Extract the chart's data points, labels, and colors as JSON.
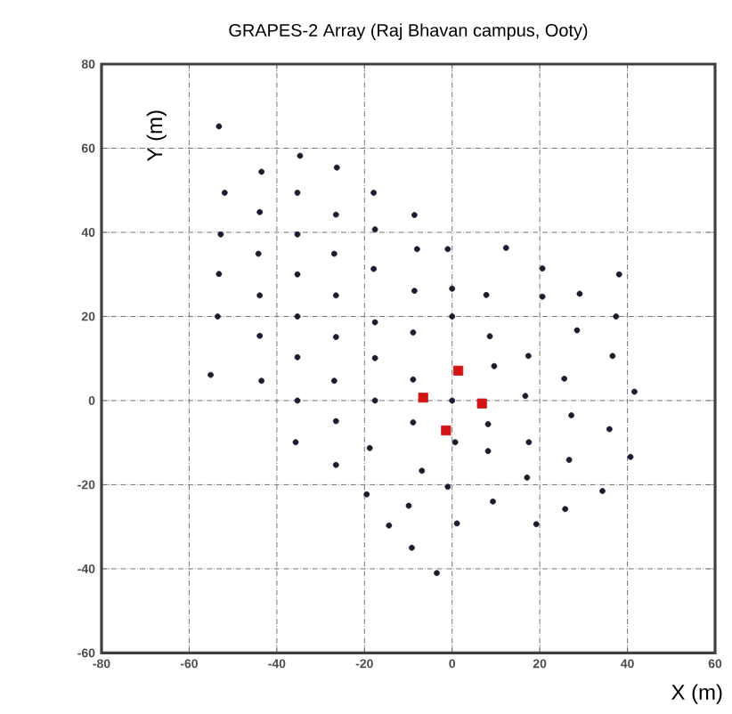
{
  "chart_data": {
    "type": "scatter",
    "title": "GRAPES-2 Array (Raj Bhavan campus, Ooty)",
    "xlabel": "X (m)",
    "ylabel": "Y (m)",
    "xlim": [
      -80,
      60
    ],
    "ylim": [
      -60,
      80
    ],
    "xticks": [
      -80,
      -60,
      -40,
      -20,
      0,
      20,
      40,
      60
    ],
    "yticks": [
      -60,
      -40,
      -20,
      0,
      20,
      40,
      60,
      80
    ],
    "grid": true,
    "series": [
      {
        "color": "#1c1c30",
        "marker": "circle",
        "x": [
          -53.2,
          -51.9,
          -52.8,
          -53.2,
          -53.5,
          -55.1,
          -43.5,
          -43.9,
          -44.2,
          -43.9,
          -43.9,
          -43.5,
          -34.7,
          -35.3,
          -35.3,
          -35.3,
          -35.3,
          -35.3,
          -35.3,
          -26.3,
          -26.5,
          -26.9,
          -26.5,
          -26.5,
          -26.9,
          -17.9,
          -17.6,
          -17.9,
          -17.6,
          -17.6,
          -17.6,
          -8.6,
          -8.0,
          -8.6,
          -8.9,
          -8.9,
          -1.0,
          0,
          0,
          0,
          12.3,
          7.8,
          8.6,
          9.6,
          17.4,
          16.7,
          20.6,
          20.6,
          29.1,
          28.5,
          25.6,
          37.4,
          36.6,
          38.1,
          41.6,
          -35.7,
          -26.5,
          -26.5,
          -18.8,
          -19.5,
          -8.9,
          0.7,
          8.2,
          8.2,
          17.5,
          27.2,
          35.9,
          40.7,
          26.7,
          17.1,
          -6.9,
          -1.0,
          -9.9,
          9.3,
          34.3,
          25.8,
          -14.4,
          1.1,
          19.2,
          -9.2,
          -3.5
        ],
        "values": [
          65.2,
          49.4,
          39.5,
          30.1,
          20,
          6.1,
          54.4,
          44.8,
          34.9,
          25,
          15.4,
          4.7,
          58.2,
          49.4,
          39.5,
          30,
          20,
          10.3,
          0,
          55.4,
          44.2,
          34.9,
          25,
          15.1,
          4.7,
          49.4,
          40.7,
          31.3,
          18.6,
          10.1,
          0,
          44.1,
          36,
          26.1,
          16.2,
          5,
          36,
          26.6,
          20,
          0,
          36.3,
          25.1,
          15.3,
          8.2,
          10.6,
          1.1,
          31.4,
          24.7,
          25.4,
          16.7,
          5.2,
          20,
          10.6,
          30,
          2.1,
          -9.9,
          -4.9,
          -15.3,
          -11.3,
          -22.3,
          -5.2,
          -9.9,
          -5.6,
          -12,
          -9.9,
          -3.5,
          -6.8,
          -13.4,
          -14.1,
          -18.3,
          -16.7,
          -20.5,
          -25,
          -24,
          -21.5,
          -25.8,
          -29.7,
          -29.2,
          -29.4,
          -35,
          -41
        ]
      },
      {
        "color": "#d41414",
        "marker": "square",
        "x": [
          1.4,
          -6.6,
          6.8,
          -1.4
        ],
        "values": [
          7.1,
          0.7,
          -0.7,
          -7.1
        ]
      }
    ]
  }
}
